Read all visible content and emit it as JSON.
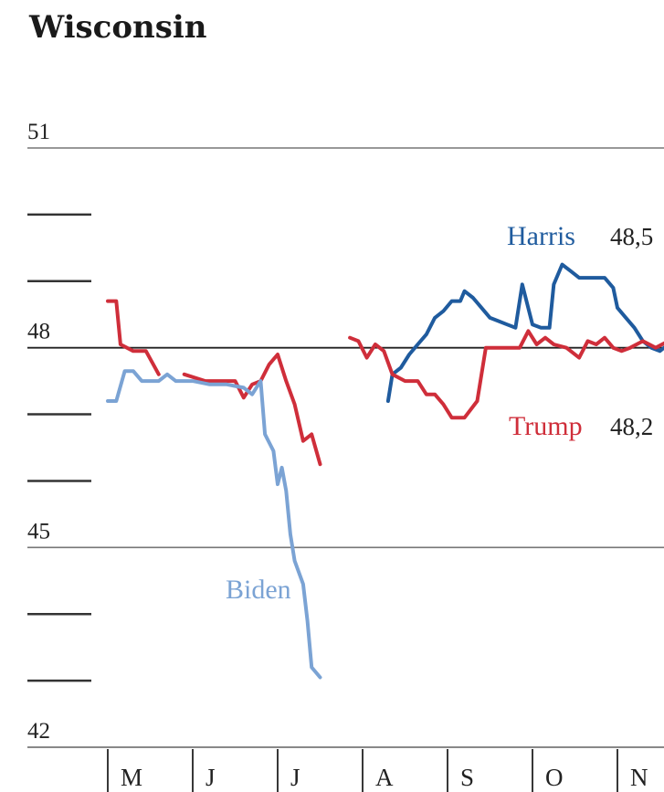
{
  "title": "Wisconsin",
  "chart_data": {
    "type": "line",
    "title": "Wisconsin",
    "xlabel": "",
    "ylabel": "",
    "ylim": [
      42,
      51
    ],
    "yticks": [
      {
        "value": 51,
        "label": "51"
      },
      {
        "value": 48,
        "label": "48"
      },
      {
        "value": 45,
        "label": "45"
      },
      {
        "value": 42,
        "label": "42"
      }
    ],
    "minor_yticks": [
      50,
      49,
      47,
      46,
      44,
      43
    ],
    "months": [
      "M",
      "J",
      "J",
      "A",
      "S",
      "O",
      "N"
    ],
    "series": [
      {
        "name": "Harris",
        "color": "#1f5b9e",
        "end_label": "48,5",
        "points": [
          [
            3.3,
            47.2
          ],
          [
            3.35,
            47.6
          ],
          [
            3.45,
            47.7
          ],
          [
            3.55,
            47.9
          ],
          [
            3.65,
            48.05
          ],
          [
            3.75,
            48.2
          ],
          [
            3.85,
            48.45
          ],
          [
            3.95,
            48.55
          ],
          [
            4.05,
            48.7
          ],
          [
            4.15,
            48.7
          ],
          [
            4.2,
            48.85
          ],
          [
            4.3,
            48.75
          ],
          [
            4.4,
            48.6
          ],
          [
            4.5,
            48.45
          ],
          [
            4.6,
            48.4
          ],
          [
            4.7,
            48.35
          ],
          [
            4.8,
            48.3
          ],
          [
            4.88,
            48.95
          ],
          [
            5.0,
            48.35
          ],
          [
            5.1,
            48.3
          ],
          [
            5.2,
            48.3
          ],
          [
            5.25,
            48.95
          ],
          [
            5.35,
            49.25
          ],
          [
            5.45,
            49.15
          ],
          [
            5.55,
            49.05
          ],
          [
            5.7,
            49.05
          ],
          [
            5.85,
            49.05
          ],
          [
            5.95,
            48.9
          ],
          [
            6.0,
            48.6
          ],
          [
            6.1,
            48.45
          ],
          [
            6.2,
            48.3
          ],
          [
            6.3,
            48.1
          ],
          [
            6.4,
            48.0
          ],
          [
            6.5,
            47.95
          ],
          [
            6.6,
            48.05
          ],
          [
            6.7,
            47.95
          ],
          [
            6.8,
            48.15
          ],
          [
            6.9,
            48.35
          ],
          [
            7.0,
            48.5
          ]
        ]
      },
      {
        "name": "Trump",
        "color": "#cf2e3a",
        "end_label": "48,2",
        "points": [
          [
            0.0,
            48.7
          ],
          [
            0.1,
            48.7
          ],
          [
            0.15,
            48.05
          ],
          [
            0.3,
            47.95
          ],
          [
            0.45,
            47.95
          ],
          [
            0.6,
            47.6
          ],
          [
            0.9,
            47.6
          ],
          [
            1.15,
            47.5
          ],
          [
            1.35,
            47.5
          ],
          [
            1.5,
            47.5
          ],
          [
            1.6,
            47.25
          ],
          [
            1.7,
            47.45
          ],
          [
            1.8,
            47.5
          ],
          [
            1.9,
            47.75
          ],
          [
            2.0,
            47.9
          ],
          [
            2.1,
            47.5
          ],
          [
            2.2,
            47.15
          ],
          [
            2.3,
            46.6
          ],
          [
            2.4,
            46.7
          ],
          [
            2.5,
            46.25
          ],
          [
            2.85,
            48.15
          ],
          [
            2.95,
            48.1
          ],
          [
            3.05,
            47.85
          ],
          [
            3.15,
            48.05
          ],
          [
            3.25,
            47.95
          ],
          [
            3.35,
            47.6
          ],
          [
            3.5,
            47.5
          ],
          [
            3.65,
            47.5
          ],
          [
            3.75,
            47.3
          ],
          [
            3.85,
            47.3
          ],
          [
            3.95,
            47.15
          ],
          [
            4.05,
            46.95
          ],
          [
            4.2,
            46.95
          ],
          [
            4.35,
            47.2
          ],
          [
            4.45,
            48.0
          ],
          [
            4.55,
            48.0
          ],
          [
            4.7,
            48.0
          ],
          [
            4.85,
            48.0
          ],
          [
            4.95,
            48.25
          ],
          [
            5.05,
            48.05
          ],
          [
            5.15,
            48.15
          ],
          [
            5.25,
            48.05
          ],
          [
            5.4,
            48.0
          ],
          [
            5.55,
            47.85
          ],
          [
            5.65,
            48.1
          ],
          [
            5.75,
            48.05
          ],
          [
            5.85,
            48.15
          ],
          [
            5.95,
            48.0
          ],
          [
            6.05,
            47.95
          ],
          [
            6.15,
            48.0
          ],
          [
            6.3,
            48.1
          ],
          [
            6.45,
            48.0
          ],
          [
            6.6,
            48.1
          ],
          [
            6.75,
            48.05
          ],
          [
            6.9,
            48.2
          ],
          [
            7.0,
            48.2
          ]
        ]
      },
      {
        "name": "Biden",
        "color": "#7ba3d4",
        "end_label": "",
        "points": [
          [
            0.0,
            47.2
          ],
          [
            0.1,
            47.2
          ],
          [
            0.2,
            47.65
          ],
          [
            0.3,
            47.65
          ],
          [
            0.4,
            47.5
          ],
          [
            0.6,
            47.5
          ],
          [
            0.7,
            47.6
          ],
          [
            0.8,
            47.5
          ],
          [
            1.0,
            47.5
          ],
          [
            1.2,
            47.45
          ],
          [
            1.4,
            47.45
          ],
          [
            1.6,
            47.4
          ],
          [
            1.7,
            47.3
          ],
          [
            1.8,
            47.5
          ],
          [
            1.85,
            46.7
          ],
          [
            1.95,
            46.45
          ],
          [
            2.0,
            45.95
          ],
          [
            2.05,
            46.2
          ],
          [
            2.1,
            45.85
          ],
          [
            2.15,
            45.2
          ],
          [
            2.2,
            44.8
          ],
          [
            2.3,
            44.45
          ],
          [
            2.35,
            43.9
          ],
          [
            2.4,
            43.2
          ],
          [
            2.5,
            43.05
          ]
        ]
      }
    ],
    "annotations": [
      {
        "text": "Harris",
        "series": "Harris"
      },
      {
        "text": "Trump",
        "series": "Trump"
      },
      {
        "text": "Biden",
        "series": "Biden"
      }
    ],
    "grid": true
  }
}
